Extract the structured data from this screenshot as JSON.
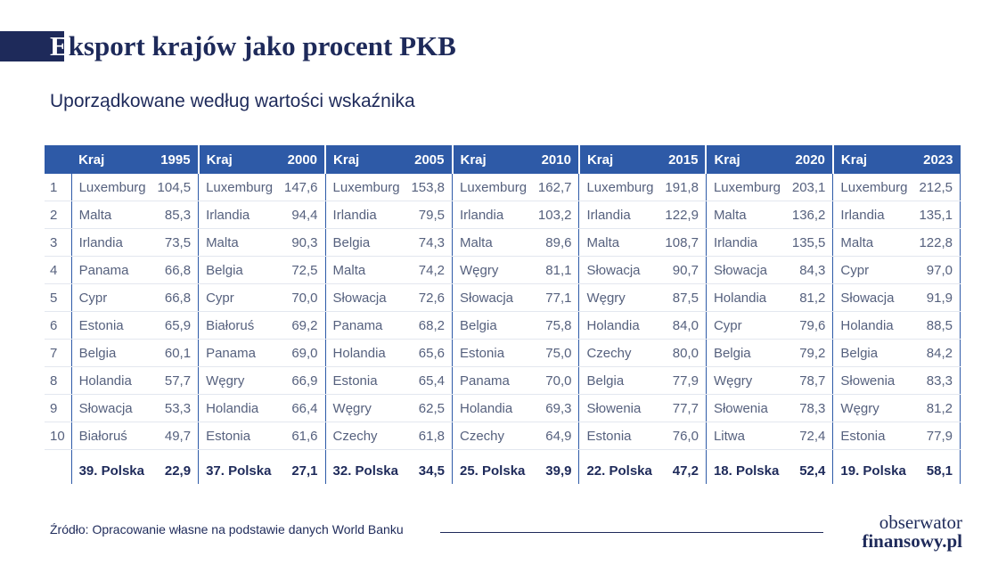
{
  "title": "Eksport krajów jako procent PKB",
  "title_first_letter": "E",
  "title_rest": "ksport krajów jako procent PKB",
  "subtitle": "Uporządkowane według wartości wskaźnika",
  "source": "Źródło: Opracowanie własne na podstawie danych World Banku",
  "logo": {
    "line1": "obserwator",
    "line2": "finansowy.pl"
  },
  "colors": {
    "navy": "#1e2a5a",
    "header_blue": "#2e5aa7",
    "text_grey": "#56617e"
  },
  "chart_data": {
    "type": "table",
    "title": "Eksport krajów jako procent PKB",
    "subtitle": "Uporządkowane według wartości wskaźnika",
    "country_header": "Kraj",
    "years": [
      "1995",
      "2000",
      "2005",
      "2010",
      "2015",
      "2020",
      "2023"
    ],
    "ranks": [
      "1",
      "2",
      "3",
      "4",
      "5",
      "6",
      "7",
      "8",
      "9",
      "10"
    ],
    "columns": [
      {
        "year": "1995",
        "rows": [
          {
            "country": "Luxemburg",
            "value": "104,5"
          },
          {
            "country": "Malta",
            "value": "85,3"
          },
          {
            "country": "Irlandia",
            "value": "73,5"
          },
          {
            "country": "Panama",
            "value": "66,8"
          },
          {
            "country": "Cypr",
            "value": "66,8"
          },
          {
            "country": "Estonia",
            "value": "65,9"
          },
          {
            "country": "Belgia",
            "value": "60,1"
          },
          {
            "country": "Holandia",
            "value": "57,7"
          },
          {
            "country": "Słowacja",
            "value": "53,3"
          },
          {
            "country": "Białoruś",
            "value": "49,7"
          }
        ],
        "poland": {
          "label": "39. Polska",
          "value": "22,9"
        }
      },
      {
        "year": "2000",
        "rows": [
          {
            "country": "Luxemburg",
            "value": "147,6"
          },
          {
            "country": "Irlandia",
            "value": "94,4"
          },
          {
            "country": "Malta",
            "value": "90,3"
          },
          {
            "country": "Belgia",
            "value": "72,5"
          },
          {
            "country": "Cypr",
            "value": "70,0"
          },
          {
            "country": "Białoruś",
            "value": "69,2"
          },
          {
            "country": "Panama",
            "value": "69,0"
          },
          {
            "country": "Węgry",
            "value": "66,9"
          },
          {
            "country": "Holandia",
            "value": "66,4"
          },
          {
            "country": "Estonia",
            "value": "61,6"
          }
        ],
        "poland": {
          "label": "37. Polska",
          "value": "27,1"
        }
      },
      {
        "year": "2005",
        "rows": [
          {
            "country": "Luxemburg",
            "value": "153,8"
          },
          {
            "country": "Irlandia",
            "value": "79,5"
          },
          {
            "country": "Belgia",
            "value": "74,3"
          },
          {
            "country": "Malta",
            "value": "74,2"
          },
          {
            "country": "Słowacja",
            "value": "72,6"
          },
          {
            "country": "Panama",
            "value": "68,2"
          },
          {
            "country": "Holandia",
            "value": "65,6"
          },
          {
            "country": "Estonia",
            "value": "65,4"
          },
          {
            "country": "Węgry",
            "value": "62,5"
          },
          {
            "country": "Czechy",
            "value": "61,8"
          }
        ],
        "poland": {
          "label": "32. Polska",
          "value": "34,5"
        }
      },
      {
        "year": "2010",
        "rows": [
          {
            "country": "Luxemburg",
            "value": "162,7"
          },
          {
            "country": "Irlandia",
            "value": "103,2"
          },
          {
            "country": "Malta",
            "value": "89,6"
          },
          {
            "country": "Węgry",
            "value": "81,1"
          },
          {
            "country": "Słowacja",
            "value": "77,1"
          },
          {
            "country": "Belgia",
            "value": "75,8"
          },
          {
            "country": "Estonia",
            "value": "75,0"
          },
          {
            "country": "Panama",
            "value": "70,0"
          },
          {
            "country": "Holandia",
            "value": "69,3"
          },
          {
            "country": "Czechy",
            "value": "64,9"
          }
        ],
        "poland": {
          "label": "25. Polska",
          "value": "39,9"
        }
      },
      {
        "year": "2015",
        "rows": [
          {
            "country": "Luxemburg",
            "value": "191,8"
          },
          {
            "country": "Irlandia",
            "value": "122,9"
          },
          {
            "country": "Malta",
            "value": "108,7"
          },
          {
            "country": "Słowacja",
            "value": "90,7"
          },
          {
            "country": "Węgry",
            "value": "87,5"
          },
          {
            "country": "Holandia",
            "value": "84,0"
          },
          {
            "country": "Czechy",
            "value": "80,0"
          },
          {
            "country": "Belgia",
            "value": "77,9"
          },
          {
            "country": "Słowenia",
            "value": "77,7"
          },
          {
            "country": "Estonia",
            "value": "76,0"
          }
        ],
        "poland": {
          "label": "22. Polska",
          "value": "47,2"
        }
      },
      {
        "year": "2020",
        "rows": [
          {
            "country": "Luxemburg",
            "value": "203,1"
          },
          {
            "country": "Malta",
            "value": "136,2"
          },
          {
            "country": "Irlandia",
            "value": "135,5"
          },
          {
            "country": "Słowacja",
            "value": "84,3"
          },
          {
            "country": "Holandia",
            "value": "81,2"
          },
          {
            "country": "Cypr",
            "value": "79,6"
          },
          {
            "country": "Belgia",
            "value": "79,2"
          },
          {
            "country": "Węgry",
            "value": "78,7"
          },
          {
            "country": "Słowenia",
            "value": "78,3"
          },
          {
            "country": "Litwa",
            "value": "72,4"
          }
        ],
        "poland": {
          "label": "18. Polska",
          "value": "52,4"
        }
      },
      {
        "year": "2023",
        "rows": [
          {
            "country": "Luxemburg",
            "value": "212,5"
          },
          {
            "country": "Irlandia",
            "value": "135,1"
          },
          {
            "country": "Malta",
            "value": "122,8"
          },
          {
            "country": "Cypr",
            "value": "97,0"
          },
          {
            "country": "Słowacja",
            "value": "91,9"
          },
          {
            "country": "Holandia",
            "value": "88,5"
          },
          {
            "country": "Belgia",
            "value": "84,2"
          },
          {
            "country": "Słowenia",
            "value": "83,3"
          },
          {
            "country": "Węgry",
            "value": "81,2"
          },
          {
            "country": "Estonia",
            "value": "77,9"
          }
        ],
        "poland": {
          "label": "19. Polska",
          "value": "58,1"
        }
      }
    ]
  }
}
